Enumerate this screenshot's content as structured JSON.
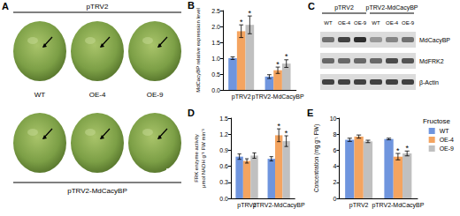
{
  "panels": {
    "A": {
      "panel": "A",
      "top_group": "pTRV2",
      "bottom_group": "pTRV2-MdCacyBP",
      "lines": [
        "WT",
        "OE-4",
        "OE-9"
      ]
    },
    "C": {
      "panel": "C",
      "groups": [
        "pTRV2",
        "pTRV2-MdCacyBP"
      ],
      "lanes": [
        "WT",
        "OE-4",
        "OE-9",
        "WT",
        "OE-4",
        "OE-9"
      ],
      "rows": [
        "MdCacyBP",
        "MdFRK2",
        "β-Actin"
      ]
    }
  },
  "chart_data": [
    {
      "panel": "B",
      "type": "bar",
      "y_label": "MdCacyBP relative expression level",
      "categories": [
        "pTRV2",
        "pTRV2-MdCacyBP"
      ],
      "series": [
        {
          "name": "WT",
          "color": "#6f95de",
          "values": [
            1.0,
            0.42
          ],
          "errors": [
            0.04,
            0.06
          ],
          "significance": [
            null,
            null
          ]
        },
        {
          "name": "OE-4",
          "color": "#f4a460",
          "values": [
            1.85,
            0.62
          ],
          "errors": [
            0.2,
            0.1
          ],
          "significance": [
            "*",
            "*"
          ]
        },
        {
          "name": "OE-9",
          "color": "#c0c0c0",
          "values": [
            2.05,
            0.83
          ],
          "errors": [
            0.28,
            0.12
          ],
          "significance": [
            "*",
            "*"
          ]
        }
      ],
      "ylim": [
        0,
        2.5
      ],
      "yticks": [
        {
          "value": 0,
          "label": "0.0"
        },
        0.5,
        {
          "value": 1,
          "label": "1.0"
        },
        1.5,
        {
          "value": 2,
          "label": "2.0"
        },
        2.5
      ],
      "grid": false
    },
    {
      "panel": "D",
      "type": "bar",
      "y_label": "FRK enzyme activity\nμmol NADH g⁻¹ FW min⁻¹",
      "categories": [
        "pTRV2",
        "pTRV2-MdCacyBP"
      ],
      "series": [
        {
          "name": "WT",
          "color": "#6f95de",
          "values": [
            0.78,
            0.74
          ],
          "errors": [
            0.05,
            0.04
          ],
          "significance": [
            null,
            null
          ]
        },
        {
          "name": "OE-4",
          "color": "#f4a460",
          "values": [
            0.7,
            1.18
          ],
          "errors": [
            0.04,
            0.12
          ],
          "significance": [
            null,
            "*"
          ]
        },
        {
          "name": "OE-9",
          "color": "#c0c0c0",
          "values": [
            0.8,
            1.07
          ],
          "errors": [
            0.05,
            0.1
          ],
          "significance": [
            null,
            "*"
          ]
        }
      ],
      "ylim": [
        0,
        1.5
      ],
      "yticks": [
        {
          "value": 0,
          "label": "0.0"
        },
        0.3,
        0.6,
        0.9,
        1.2,
        1.5
      ],
      "grid": false
    },
    {
      "panel": "E",
      "type": "bar",
      "title": "Fructose",
      "y_label": "Concentration (mg g⁻¹ FW)",
      "categories": [
        "pTRV2",
        "pTRV2-MdCacyBP"
      ],
      "series": [
        {
          "name": "WT",
          "color": "#6f95de",
          "values": [
            7.3,
            7.4
          ],
          "errors": [
            0.2,
            0.1
          ],
          "significance": [
            null,
            null
          ]
        },
        {
          "name": "OE-4",
          "color": "#f4a460",
          "values": [
            7.7,
            5.2
          ],
          "errors": [
            0.2,
            0.4
          ],
          "significance": [
            null,
            "*"
          ]
        },
        {
          "name": "OE-9",
          "color": "#c0c0c0",
          "values": [
            7.1,
            5.6
          ],
          "errors": [
            0.15,
            0.3
          ],
          "significance": [
            null,
            "*"
          ]
        }
      ],
      "ylim": [
        0,
        10
      ],
      "yticks": [
        0,
        2,
        4,
        6,
        8,
        10
      ],
      "grid": false,
      "legend": "upper right"
    }
  ]
}
